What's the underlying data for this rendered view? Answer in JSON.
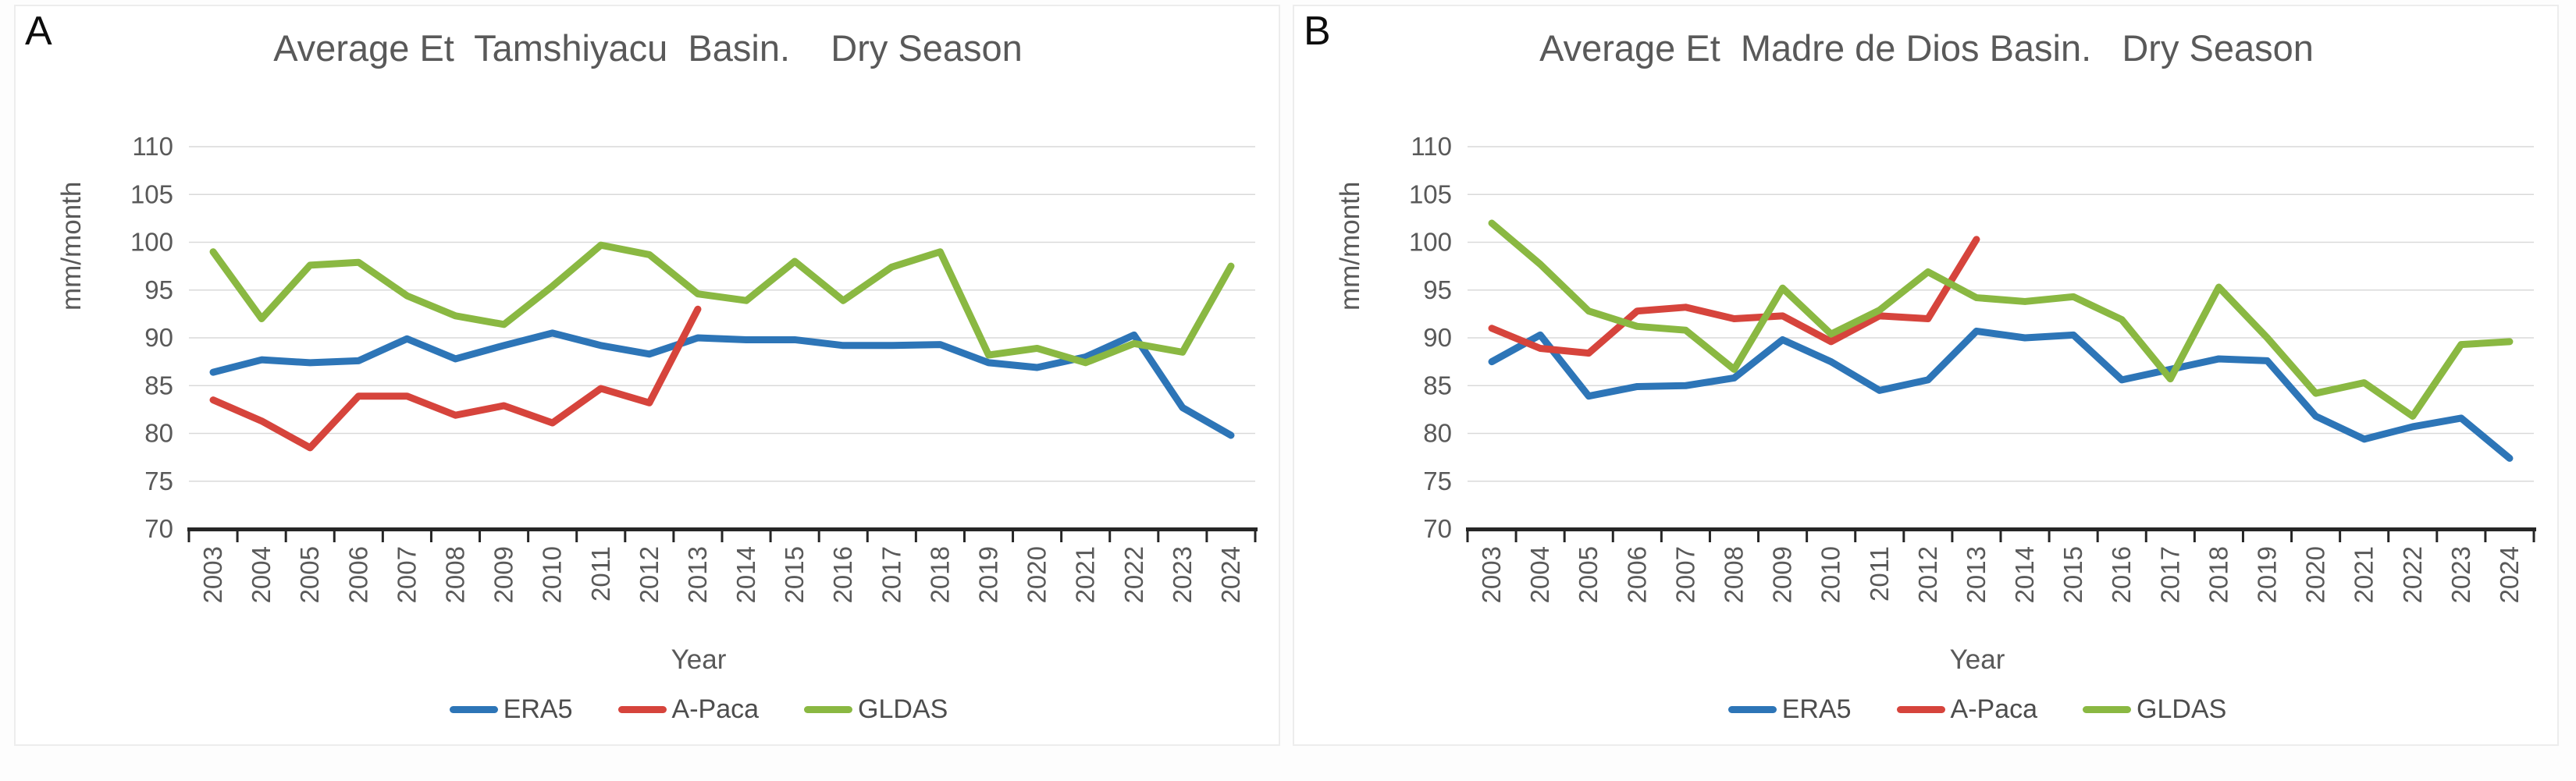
{
  "chart_data": [
    {
      "type": "line",
      "panel_label": "A",
      "title": "Average Et  Tamshiyacu  Basin.    Dry Season",
      "xlabel": "Year",
      "ylabel": "mm/month",
      "ylim": [
        70,
        110
      ],
      "ytick_step": 5,
      "grid": "horizontal",
      "legend_position": "bottom",
      "years": [
        "2003",
        "2004",
        "2005",
        "2006",
        "2007",
        "2008",
        "2009",
        "2010",
        "2011",
        "2012",
        "2013",
        "2014",
        "2015",
        "2016",
        "2017",
        "2018",
        "2019",
        "2020",
        "2021",
        "2022",
        "2023",
        "2024"
      ],
      "series": [
        {
          "name": "ERA5",
          "color": "#2D75B7",
          "values": [
            86.4,
            87.7,
            87.4,
            87.6,
            89.9,
            87.8,
            89.2,
            90.5,
            89.2,
            88.3,
            90.0,
            89.8,
            89.8,
            89.2,
            89.2,
            89.3,
            87.4,
            86.9,
            88.0,
            90.3,
            82.7,
            79.8
          ]
        },
        {
          "name": "A-Paca",
          "color": "#D6443C",
          "values": [
            83.5,
            81.3,
            78.5,
            83.9,
            83.9,
            81.9,
            82.9,
            81.1,
            84.7,
            83.2,
            93.0,
            null,
            null,
            null,
            null,
            null,
            null,
            null,
            null,
            null,
            null,
            null
          ]
        },
        {
          "name": "GLDAS",
          "color": "#8AB842",
          "values": [
            99.0,
            92.0,
            97.6,
            97.9,
            94.4,
            92.3,
            91.4,
            95.4,
            99.7,
            98.7,
            94.6,
            93.9,
            98.0,
            93.9,
            97.4,
            99.0,
            88.2,
            88.9,
            87.4,
            89.4,
            88.5,
            97.5
          ]
        }
      ]
    },
    {
      "type": "line",
      "panel_label": "B",
      "title": "Average Et  Madre de Dios Basin.   Dry Season",
      "xlabel": "Year",
      "ylabel": "mm/month",
      "ylim": [
        70,
        110
      ],
      "ytick_step": 5,
      "grid": "horizontal",
      "legend_position": "bottom",
      "years": [
        "2003",
        "2004",
        "2005",
        "2006",
        "2007",
        "2008",
        "2009",
        "2010",
        "2011",
        "2012",
        "2013",
        "2014",
        "2015",
        "2016",
        "2017",
        "2018",
        "2019",
        "2020",
        "2021",
        "2022",
        "2023",
        "2024"
      ],
      "series": [
        {
          "name": "ERA5",
          "color": "#2D75B7",
          "values": [
            87.5,
            90.3,
            83.9,
            84.9,
            85.0,
            85.8,
            89.8,
            87.5,
            84.5,
            85.6,
            90.7,
            90.0,
            90.3,
            85.6,
            86.7,
            87.8,
            87.6,
            81.8,
            79.4,
            80.7,
            81.6,
            77.4
          ]
        },
        {
          "name": "A-Paca",
          "color": "#D6443C",
          "values": [
            91.0,
            88.9,
            88.4,
            92.8,
            93.2,
            92.0,
            92.3,
            89.6,
            92.3,
            92.0,
            100.3,
            null,
            null,
            null,
            null,
            null,
            null,
            null,
            null,
            null,
            null,
            null
          ]
        },
        {
          "name": "GLDAS",
          "color": "#8AB842",
          "values": [
            102.0,
            97.7,
            92.8,
            91.2,
            90.8,
            86.7,
            95.2,
            90.4,
            92.9,
            96.9,
            94.2,
            93.8,
            94.3,
            91.9,
            85.7,
            95.3,
            90.0,
            84.2,
            85.3,
            81.8,
            89.3,
            89.6
          ]
        }
      ]
    }
  ],
  "style": {
    "gridline_color": "#D9D9D9",
    "axis_color": "#262626",
    "tick_label_color": "#595959",
    "title_color": "#595959"
  }
}
